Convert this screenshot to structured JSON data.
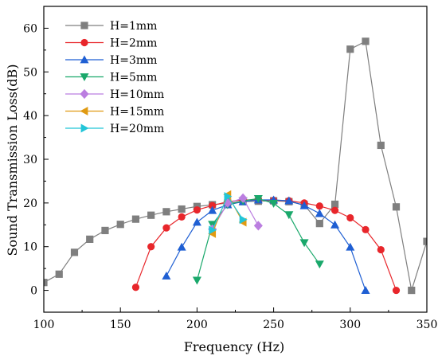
{
  "chart_data": {
    "type": "line",
    "xlabel": "Frequency (Hz)",
    "ylabel": "Sound Transmission Loss(dB)",
    "xlim": [
      100,
      350
    ],
    "ylim": [
      -5,
      65
    ],
    "xticks": [
      100,
      150,
      200,
      250,
      300,
      350
    ],
    "yticks": [
      0,
      10,
      20,
      30,
      40,
      50,
      60
    ],
    "grid": false,
    "legend_position": "top-left",
    "series": [
      {
        "name": "H=1mm",
        "color": "#7f7f7f",
        "marker": "square",
        "x": [
          100,
          110,
          120,
          130,
          140,
          150,
          160,
          170,
          180,
          190,
          200,
          210,
          220,
          230,
          240,
          250,
          260,
          270,
          280,
          290,
          300,
          310,
          320,
          330,
          340,
          350
        ],
        "y": [
          1.8,
          3.7,
          8.7,
          11.7,
          13.7,
          15.1,
          16.3,
          17.2,
          18.0,
          18.6,
          19.2,
          19.6,
          20.0,
          20.3,
          20.4,
          20.5,
          20.3,
          19.6,
          15.3,
          19.7,
          55.2,
          57.0,
          33.2,
          19.1,
          0.0,
          11.2
        ]
      },
      {
        "name": "H=2mm",
        "color": "#e8262b",
        "marker": "circle",
        "x": [
          160,
          170,
          180,
          190,
          200,
          210,
          220,
          230,
          240,
          250,
          260,
          270,
          280,
          290,
          300,
          310,
          320,
          330
        ],
        "y": [
          0.7,
          10.0,
          14.3,
          16.8,
          18.4,
          19.4,
          20.3,
          20.7,
          20.7,
          20.6,
          20.5,
          20.0,
          19.3,
          18.3,
          16.6,
          13.9,
          9.3,
          0.0
        ]
      },
      {
        "name": "H=3mm",
        "color": "#1f5fd3",
        "marker": "triangle-up",
        "x": [
          180,
          190,
          200,
          210,
          220,
          230,
          240,
          250,
          260,
          270,
          280,
          290,
          300,
          310
        ],
        "y": [
          3.3,
          9.9,
          15.6,
          18.3,
          19.6,
          20.3,
          20.7,
          20.7,
          20.5,
          19.4,
          17.6,
          15.0,
          9.9,
          0.0
        ]
      },
      {
        "name": "H=5mm",
        "color": "#1aa86b",
        "marker": "triangle-down",
        "x": [
          200,
          210,
          220,
          230,
          240,
          250,
          260,
          270,
          280
        ],
        "y": [
          2.3,
          15.1,
          19.6,
          20.5,
          21.0,
          19.9,
          17.3,
          10.9,
          6.0
        ]
      },
      {
        "name": "H=10mm",
        "color": "#bb7ee0",
        "marker": "diamond",
        "x": [
          210,
          220,
          230,
          240
        ],
        "y": [
          14.0,
          20.0,
          21.1,
          14.8
        ]
      },
      {
        "name": "H=15mm",
        "color": "#e09a12",
        "marker": "triangle-left",
        "x": [
          210,
          220,
          230
        ],
        "y": [
          13.0,
          21.9,
          15.6
        ]
      },
      {
        "name": "H=20mm",
        "color": "#22c5d8",
        "marker": "triangle-right",
        "x": [
          210,
          220,
          230
        ],
        "y": [
          13.8,
          21.5,
          16.2
        ]
      }
    ]
  }
}
